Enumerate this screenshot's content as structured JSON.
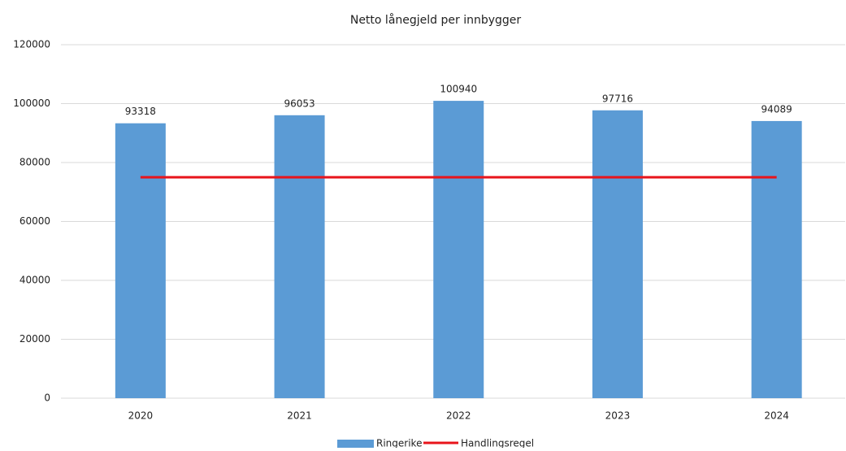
{
  "chart_data": {
    "type": "bar",
    "title": "Netto lånegjeld per innbygger",
    "categories": [
      "2020",
      "2021",
      "2022",
      "2023",
      "2024"
    ],
    "series": [
      {
        "name": "Ringerike",
        "type": "bar",
        "color": "#5b9bd5",
        "data_labels": true,
        "values": [
          93318,
          96053,
          100940,
          97716,
          94089
        ]
      },
      {
        "name": "Handlingsregel",
        "type": "line",
        "color": "#e8141b",
        "data_labels": false,
        "values": [
          75000,
          75000,
          75000,
          75000,
          75000
        ]
      }
    ],
    "ylim": [
      0,
      120000
    ],
    "yticks": [
      0,
      20000,
      40000,
      60000,
      80000,
      100000,
      120000
    ],
    "grid": true,
    "legend": "bottom"
  }
}
